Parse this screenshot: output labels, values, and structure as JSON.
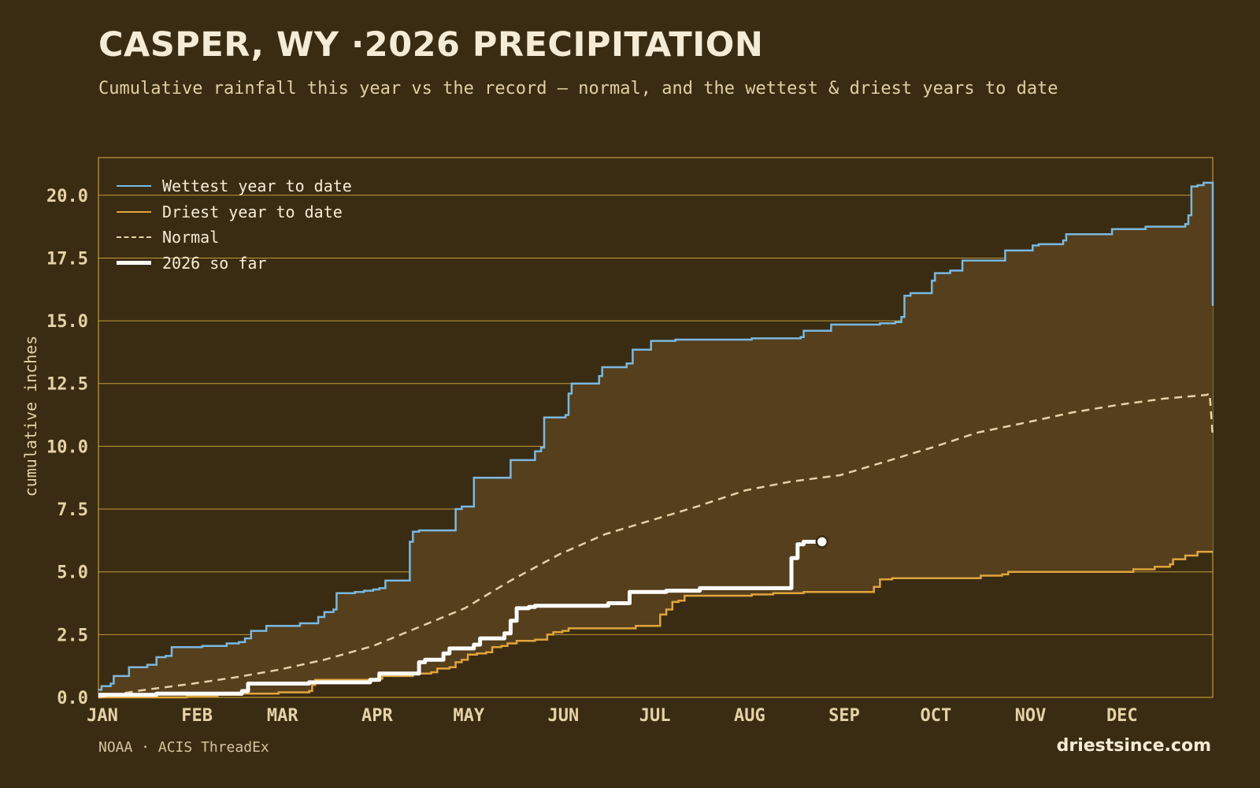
{
  "header": {
    "title": "CASPER, WY ·2026 PRECIPITATION",
    "subtitle": "Cumulative rainfall this year vs the record — normal, and the wettest & driest years to date"
  },
  "footer": {
    "source": "NOAA · ACIS ThreadEx",
    "brand": "driestsince.com"
  },
  "colors": {
    "background": "#3a2c12",
    "band_fill": "#553f1d",
    "grid": "#c49a3c",
    "wettest": "#7ab8e0",
    "driest": "#e0a53c",
    "normal": "#e6d2a8",
    "current": "#ffffff",
    "tick_text": "#e6d2a8"
  },
  "chart_data": {
    "type": "line",
    "ylabel": "cumulative inches",
    "ylim": [
      0,
      21.5
    ],
    "xlim": [
      1,
      366
    ],
    "yticks": [
      {
        "value": 0,
        "label": "0.0"
      },
      {
        "value": 2.5,
        "label": "2.5"
      },
      {
        "value": 5,
        "label": "5.0"
      },
      {
        "value": 7.5,
        "label": "7.5"
      },
      {
        "value": 10,
        "label": "10.0"
      },
      {
        "value": 12.5,
        "label": "12.5"
      },
      {
        "value": 15,
        "label": "15.0"
      },
      {
        "value": 17.5,
        "label": "17.5"
      },
      {
        "value": 20,
        "label": "20.0"
      }
    ],
    "xticks": [
      {
        "day": 1,
        "label": "JAN"
      },
      {
        "day": 32,
        "label": "FEB"
      },
      {
        "day": 60,
        "label": "MAR"
      },
      {
        "day": 91,
        "label": "APR"
      },
      {
        "day": 121,
        "label": "MAY"
      },
      {
        "day": 152,
        "label": "JUN"
      },
      {
        "day": 182,
        "label": "JUL"
      },
      {
        "day": 213,
        "label": "AUG"
      },
      {
        "day": 244,
        "label": "SEP"
      },
      {
        "day": 274,
        "label": "OCT"
      },
      {
        "day": 305,
        "label": "NOV"
      },
      {
        "day": 335,
        "label": "DEC"
      }
    ],
    "legend_position": "top-left",
    "grid": true,
    "band": "between wettest and driest",
    "series": [
      {
        "name": "Wettest year to date",
        "key": "wettest",
        "style": "step",
        "points": [
          [
            1,
            0.3
          ],
          [
            2,
            0.45
          ],
          [
            5,
            0.55
          ],
          [
            6,
            0.85
          ],
          [
            10,
            0.85
          ],
          [
            11,
            1.2
          ],
          [
            15,
            1.2
          ],
          [
            17,
            1.3
          ],
          [
            20,
            1.6
          ],
          [
            23,
            1.65
          ],
          [
            25,
            2.0
          ],
          [
            33,
            2.0
          ],
          [
            35,
            2.05
          ],
          [
            41,
            2.05
          ],
          [
            43,
            2.15
          ],
          [
            47,
            2.2
          ],
          [
            49,
            2.35
          ],
          [
            51,
            2.65
          ],
          [
            54,
            2.65
          ],
          [
            56,
            2.85
          ],
          [
            65,
            2.85
          ],
          [
            67,
            2.95
          ],
          [
            72,
            2.95
          ],
          [
            73,
            3.2
          ],
          [
            75,
            3.4
          ],
          [
            78,
            3.5
          ],
          [
            79,
            4.15
          ],
          [
            85,
            4.2
          ],
          [
            88,
            4.25
          ],
          [
            91,
            4.3
          ],
          [
            93,
            4.35
          ],
          [
            95,
            4.65
          ],
          [
            102,
            4.65
          ],
          [
            103,
            6.2
          ],
          [
            104,
            6.6
          ],
          [
            106,
            6.65
          ],
          [
            117,
            6.65
          ],
          [
            118,
            7.5
          ],
          [
            120,
            7.6
          ],
          [
            123,
            7.6
          ],
          [
            124,
            8.75
          ],
          [
            125,
            8.75
          ],
          [
            134,
            8.75
          ],
          [
            136,
            9.45
          ],
          [
            142,
            9.45
          ],
          [
            144,
            9.8
          ],
          [
            146,
            9.95
          ],
          [
            147,
            11.15
          ],
          [
            152,
            11.15
          ],
          [
            154,
            11.25
          ],
          [
            155,
            12.1
          ],
          [
            156,
            12.5
          ],
          [
            163,
            12.5
          ],
          [
            165,
            12.8
          ],
          [
            166,
            13.15
          ],
          [
            172,
            13.15
          ],
          [
            174,
            13.3
          ],
          [
            176,
            13.85
          ],
          [
            180,
            13.85
          ],
          [
            182,
            14.2
          ],
          [
            186,
            14.2
          ],
          [
            190,
            14.25
          ],
          [
            213,
            14.25
          ],
          [
            215,
            14.3
          ],
          [
            223,
            14.3
          ],
          [
            231,
            14.35
          ],
          [
            232,
            14.6
          ],
          [
            239,
            14.6
          ],
          [
            241,
            14.85
          ],
          [
            251,
            14.85
          ],
          [
            257,
            14.9
          ],
          [
            262,
            14.95
          ],
          [
            264,
            15.15
          ],
          [
            265,
            16.0
          ],
          [
            267,
            16.1
          ],
          [
            272,
            16.1
          ],
          [
            274,
            16.6
          ],
          [
            275,
            16.9
          ],
          [
            279,
            16.9
          ],
          [
            280,
            17.0
          ],
          [
            283,
            17.0
          ],
          [
            284,
            17.4
          ],
          [
            296,
            17.4
          ],
          [
            298,
            17.8
          ],
          [
            306,
            17.8
          ],
          [
            307,
            18.0
          ],
          [
            309,
            18.05
          ],
          [
            315,
            18.05
          ],
          [
            317,
            18.2
          ],
          [
            318,
            18.45
          ],
          [
            331,
            18.45
          ],
          [
            333,
            18.65
          ],
          [
            342,
            18.65
          ],
          [
            344,
            18.75
          ],
          [
            355,
            18.75
          ],
          [
            357,
            18.85
          ],
          [
            358,
            19.2
          ],
          [
            359,
            20.35
          ],
          [
            361,
            20.4
          ],
          [
            363,
            20.5
          ],
          [
            365,
            20.5
          ],
          [
            366,
            15.6
          ]
        ]
      },
      {
        "name": "Driest year to date",
        "key": "driest",
        "style": "step",
        "points": [
          [
            1,
            0.0
          ],
          [
            20,
            0.0
          ],
          [
            30,
            0.05
          ],
          [
            40,
            0.1
          ],
          [
            48,
            0.15
          ],
          [
            60,
            0.2
          ],
          [
            70,
            0.25
          ],
          [
            71,
            0.5
          ],
          [
            72,
            0.7
          ],
          [
            90,
            0.7
          ],
          [
            92,
            0.75
          ],
          [
            94,
            0.85
          ],
          [
            102,
            0.85
          ],
          [
            104,
            0.95
          ],
          [
            110,
            1.0
          ],
          [
            112,
            1.15
          ],
          [
            116,
            1.2
          ],
          [
            118,
            1.4
          ],
          [
            120,
            1.5
          ],
          [
            122,
            1.7
          ],
          [
            125,
            1.75
          ],
          [
            128,
            1.8
          ],
          [
            130,
            2.0
          ],
          [
            133,
            2.05
          ],
          [
            135,
            2.15
          ],
          [
            138,
            2.25
          ],
          [
            144,
            2.3
          ],
          [
            148,
            2.5
          ],
          [
            150,
            2.6
          ],
          [
            153,
            2.65
          ],
          [
            155,
            2.75
          ],
          [
            175,
            2.75
          ],
          [
            177,
            2.85
          ],
          [
            183,
            2.85
          ],
          [
            185,
            3.3
          ],
          [
            187,
            3.5
          ],
          [
            189,
            3.8
          ],
          [
            191,
            3.85
          ],
          [
            193,
            4.05
          ],
          [
            205,
            4.05
          ],
          [
            215,
            4.1
          ],
          [
            222,
            4.15
          ],
          [
            232,
            4.2
          ],
          [
            254,
            4.2
          ],
          [
            255,
            4.4
          ],
          [
            257,
            4.7
          ],
          [
            261,
            4.75
          ],
          [
            283,
            4.75
          ],
          [
            290,
            4.85
          ],
          [
            297,
            4.9
          ],
          [
            299,
            5.0
          ],
          [
            340,
            5.1
          ],
          [
            347,
            5.2
          ],
          [
            352,
            5.3
          ],
          [
            353,
            5.5
          ],
          [
            357,
            5.65
          ],
          [
            361,
            5.8
          ],
          [
            366,
            5.8
          ]
        ]
      },
      {
        "name": "Normal",
        "key": "normal",
        "style": "smooth",
        "points": [
          [
            1,
            0.0
          ],
          [
            15,
            0.28
          ],
          [
            32,
            0.55
          ],
          [
            46,
            0.8
          ],
          [
            60,
            1.1
          ],
          [
            75,
            1.5
          ],
          [
            91,
            2.05
          ],
          [
            105,
            2.75
          ],
          [
            121,
            3.55
          ],
          [
            136,
            4.65
          ],
          [
            152,
            5.7
          ],
          [
            167,
            6.5
          ],
          [
            182,
            7.05
          ],
          [
            197,
            7.6
          ],
          [
            213,
            8.25
          ],
          [
            228,
            8.6
          ],
          [
            244,
            8.85
          ],
          [
            259,
            9.4
          ],
          [
            274,
            9.95
          ],
          [
            289,
            10.55
          ],
          [
            305,
            10.95
          ],
          [
            320,
            11.35
          ],
          [
            335,
            11.65
          ],
          [
            350,
            11.9
          ],
          [
            364,
            12.05
          ],
          [
            365,
            12.1
          ],
          [
            366,
            10.4
          ]
        ]
      },
      {
        "name": "2026 so far",
        "key": "current",
        "style": "step",
        "points": [
          [
            1,
            0.1
          ],
          [
            20,
            0.15
          ],
          [
            48,
            0.25
          ],
          [
            50,
            0.55
          ],
          [
            70,
            0.6
          ],
          [
            90,
            0.7
          ],
          [
            93,
            0.95
          ],
          [
            104,
            0.95
          ],
          [
            106,
            1.4
          ],
          [
            108,
            1.5
          ],
          [
            112,
            1.5
          ],
          [
            114,
            1.75
          ],
          [
            116,
            1.95
          ],
          [
            122,
            1.95
          ],
          [
            124,
            2.1
          ],
          [
            126,
            2.35
          ],
          [
            132,
            2.35
          ],
          [
            134,
            2.55
          ],
          [
            136,
            3.05
          ],
          [
            138,
            3.55
          ],
          [
            142,
            3.6
          ],
          [
            144,
            3.65
          ],
          [
            166,
            3.65
          ],
          [
            168,
            3.75
          ],
          [
            173,
            3.75
          ],
          [
            175,
            4.2
          ],
          [
            185,
            4.2
          ],
          [
            187,
            4.25
          ],
          [
            196,
            4.25
          ],
          [
            198,
            4.35
          ],
          [
            226,
            4.35
          ],
          [
            228,
            5.55
          ],
          [
            230,
            6.1
          ],
          [
            232,
            6.2
          ],
          [
            236,
            6.2
          ]
        ]
      }
    ],
    "current_marker": {
      "day": 238,
      "value": 6.2
    }
  }
}
